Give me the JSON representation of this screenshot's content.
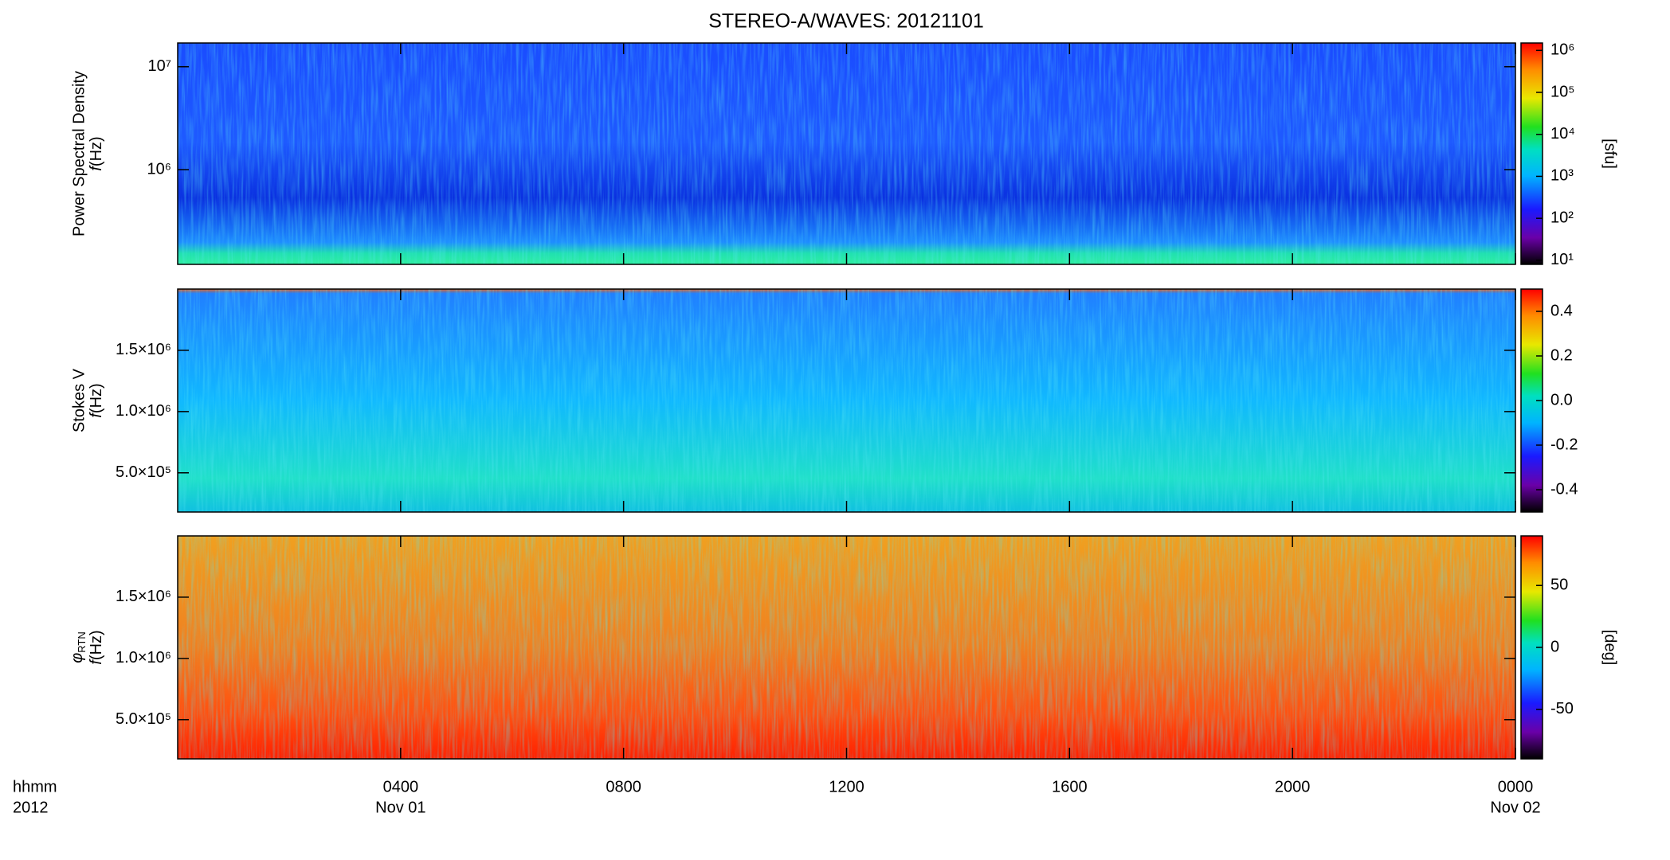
{
  "chart_data": [
    {
      "type": "heatmap",
      "title": "STEREO-A/WAVES: 20121101",
      "ylabel": "Power Spectral Density",
      "ylabel_symbol": "f",
      "ylabel_unit": "(Hz)",
      "ylog": true,
      "ylim": [
        120000,
        17000000
      ],
      "yticks": [
        {
          "value": 1000000,
          "label": "10⁶"
        },
        {
          "value": 10000000,
          "label": "10⁷"
        }
      ],
      "colormap": "rainbow",
      "colorbar": {
        "label": "[sfu]",
        "log": true,
        "lim": [
          8,
          1500000
        ],
        "ticks": [
          {
            "value": 10,
            "label": "10¹"
          },
          {
            "value": 100,
            "label": "10²"
          },
          {
            "value": 1000,
            "label": "10³"
          },
          {
            "value": 10000,
            "label": "10⁴"
          },
          {
            "value": 100000,
            "label": "10⁵"
          },
          {
            "value": 1000000,
            "label": "10⁶"
          }
        ]
      }
    },
    {
      "type": "heatmap",
      "ylabel": "Stokes V",
      "ylabel_symbol": "f",
      "ylabel_unit": "(Hz)",
      "ylog": false,
      "ylim": [
        180000,
        2000000
      ],
      "yticks": [
        {
          "value": 500000,
          "label": "5.0×10⁵"
        },
        {
          "value": 1000000,
          "label": "1.0×10⁶"
        },
        {
          "value": 1500000,
          "label": "1.5×10⁶"
        }
      ],
      "colormap": "rainbow",
      "colorbar": {
        "log": false,
        "lim": [
          -0.5,
          0.5
        ],
        "ticks": [
          -0.4,
          -0.2,
          {
            "value": 0,
            "label": "0.0"
          },
          0.2,
          0.4
        ]
      }
    },
    {
      "type": "heatmap",
      "ylabel_phi": "φ",
      "ylabel_sub": "RTN",
      "ylabel_symbol": "f",
      "ylabel_unit": "(Hz)",
      "ylog": false,
      "ylim": [
        180000,
        2000000
      ],
      "yticks": [
        {
          "value": 500000,
          "label": "5.0×10⁵"
        },
        {
          "value": 1000000,
          "label": "1.0×10⁶"
        },
        {
          "value": 1500000,
          "label": "1.5×10⁶"
        }
      ],
      "colormap": "rainbow",
      "colorbar": {
        "label": "[deg]",
        "log": false,
        "lim": [
          -90,
          90
        ],
        "ticks": [
          -50,
          0,
          50
        ]
      },
      "xlim": [
        0,
        24
      ],
      "xticks": [
        {
          "value": 4,
          "label": "0400"
        },
        {
          "value": 8,
          "label": "0800"
        },
        {
          "value": 12,
          "label": "1200"
        },
        {
          "value": 16,
          "label": "1600"
        },
        {
          "value": 20,
          "label": "2000"
        },
        {
          "value": 24,
          "label": "0000"
        }
      ],
      "xdate_labels": [
        {
          "value": 4,
          "label": "Nov 01"
        },
        {
          "value": 24,
          "label": "Nov 02"
        }
      ],
      "xlabel": "hhmm",
      "xlabel_year": "2012"
    }
  ]
}
